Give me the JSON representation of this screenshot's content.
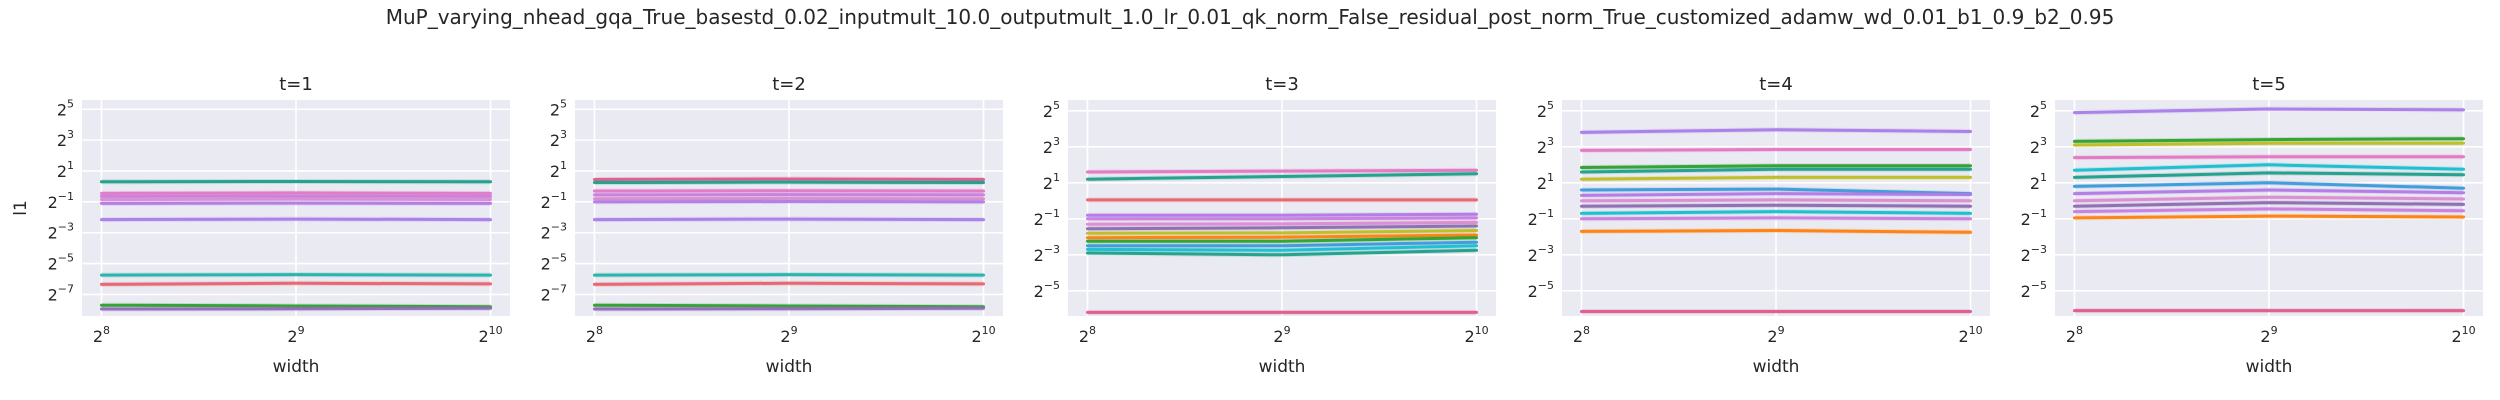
{
  "figure_title": "MuP_varying_nhead_gqa_True_basestd_0.02_inputmult_10.0_outputmult_1.0_lr_0.01_qk_norm_False_residual_post_norm_True_customized_adamw_wd_0.01_b1_0.9_b2_0.95",
  "chart_data": [
    {
      "type": "line",
      "title": "t=1",
      "xlabel": "width",
      "ylabel": "l1",
      "xscale": "log2",
      "yscale": "log2",
      "xlim_log2": [
        7.9,
        10.1
      ],
      "ylim_log2": [
        -8.4,
        5.6
      ],
      "grid": true,
      "x_ticks": [
        {
          "base": "2",
          "exp": "8",
          "v": 8
        },
        {
          "base": "2",
          "exp": "9",
          "v": 9
        },
        {
          "base": "2",
          "exp": "10",
          "v": 10
        }
      ],
      "y_ticks": [
        {
          "base": "2",
          "exp": "5",
          "v": 5
        },
        {
          "base": "2",
          "exp": "3",
          "v": 3
        },
        {
          "base": "2",
          "exp": "1",
          "v": 1
        },
        {
          "base": "2",
          "exp": "−1",
          "v": -1
        },
        {
          "base": "2",
          "exp": "−3",
          "v": -3
        },
        {
          "base": "2",
          "exp": "−5",
          "v": -5
        },
        {
          "base": "2",
          "exp": "−7",
          "v": -7
        }
      ],
      "x": [
        256,
        512,
        1024
      ],
      "series": [
        {
          "color": "#1f9e89",
          "log2_values": [
            0.3,
            0.32,
            0.3
          ]
        },
        {
          "color": "#e377c2",
          "log2_values": [
            -0.45,
            -0.42,
            -0.45
          ]
        },
        {
          "color": "#c77dde",
          "log2_values": [
            -0.65,
            -0.63,
            -0.65
          ]
        },
        {
          "color": "#d98cd0",
          "log2_values": [
            -0.85,
            -0.82,
            -0.85
          ]
        },
        {
          "color": "#b07ae6",
          "log2_values": [
            -1.1,
            -1.08,
            -1.1
          ]
        },
        {
          "color": "#a67de8",
          "log2_values": [
            -2.15,
            -2.12,
            -2.15
          ]
        },
        {
          "color": "#24b3a8",
          "log2_values": [
            -5.75,
            -5.72,
            -5.75
          ]
        },
        {
          "color": "#e8636d",
          "log2_values": [
            -6.35,
            -6.28,
            -6.32
          ]
        },
        {
          "color": "#2ca02c",
          "log2_values": [
            -7.7,
            -7.75,
            -7.8
          ]
        },
        {
          "color": "#9467bd",
          "log2_values": [
            -7.95,
            -7.93,
            -7.9
          ]
        }
      ]
    },
    {
      "type": "line",
      "title": "t=2",
      "xlabel": "width",
      "ylabel": "",
      "xscale": "log2",
      "yscale": "log2",
      "xlim_log2": [
        7.9,
        10.1
      ],
      "ylim_log2": [
        -8.4,
        5.6
      ],
      "grid": true,
      "x_ticks": [
        {
          "base": "2",
          "exp": "8",
          "v": 8
        },
        {
          "base": "2",
          "exp": "9",
          "v": 9
        },
        {
          "base": "2",
          "exp": "10",
          "v": 10
        }
      ],
      "y_ticks": [
        {
          "base": "2",
          "exp": "5",
          "v": 5
        },
        {
          "base": "2",
          "exp": "3",
          "v": 3
        },
        {
          "base": "2",
          "exp": "1",
          "v": 1
        },
        {
          "base": "2",
          "exp": "−1",
          "v": -1
        },
        {
          "base": "2",
          "exp": "−3",
          "v": -3
        },
        {
          "base": "2",
          "exp": "−5",
          "v": -5
        },
        {
          "base": "2",
          "exp": "−7",
          "v": -7
        }
      ],
      "x": [
        256,
        512,
        1024
      ],
      "series": [
        {
          "color": "#e05a8a",
          "log2_values": [
            0.45,
            0.48,
            0.45
          ]
        },
        {
          "color": "#1f9e89",
          "log2_values": [
            0.25,
            0.28,
            0.25
          ]
        },
        {
          "color": "#e377c2",
          "log2_values": [
            -0.3,
            -0.28,
            -0.3
          ]
        },
        {
          "color": "#c77dde",
          "log2_values": [
            -0.55,
            -0.53,
            -0.55
          ]
        },
        {
          "color": "#d98cd0",
          "log2_values": [
            -0.8,
            -0.78,
            -0.8
          ]
        },
        {
          "color": "#b07ae6",
          "log2_values": [
            -1.0,
            -0.98,
            -1.0
          ]
        },
        {
          "color": "#a67de8",
          "log2_values": [
            -2.15,
            -2.12,
            -2.15
          ]
        },
        {
          "color": "#24b3a8",
          "log2_values": [
            -5.75,
            -5.72,
            -5.75
          ]
        },
        {
          "color": "#e8636d",
          "log2_values": [
            -6.35,
            -6.28,
            -6.32
          ]
        },
        {
          "color": "#2ca02c",
          "log2_values": [
            -7.7,
            -7.75,
            -7.8
          ]
        },
        {
          "color": "#9467bd",
          "log2_values": [
            -7.95,
            -7.93,
            -7.9
          ]
        }
      ]
    },
    {
      "type": "line",
      "title": "t=3",
      "xlabel": "width",
      "ylabel": "",
      "xscale": "log2",
      "yscale": "log2",
      "xlim_log2": [
        7.9,
        10.1
      ],
      "ylim_log2": [
        -6.4,
        5.6
      ],
      "grid": true,
      "x_ticks": [
        {
          "base": "2",
          "exp": "8",
          "v": 8
        },
        {
          "base": "2",
          "exp": "9",
          "v": 9
        },
        {
          "base": "2",
          "exp": "10",
          "v": 10
        }
      ],
      "y_ticks": [
        {
          "base": "2",
          "exp": "5",
          "v": 5
        },
        {
          "base": "2",
          "exp": "3",
          "v": 3
        },
        {
          "base": "2",
          "exp": "1",
          "v": 1
        },
        {
          "base": "2",
          "exp": "−1",
          "v": -1
        },
        {
          "base": "2",
          "exp": "−3",
          "v": -3
        },
        {
          "base": "2",
          "exp": "−5",
          "v": -5
        }
      ],
      "x": [
        256,
        512,
        1024
      ],
      "series": [
        {
          "color": "#e377c2",
          "log2_values": [
            1.6,
            1.65,
            1.7
          ]
        },
        {
          "color": "#1f9e89",
          "log2_values": [
            1.2,
            1.35,
            1.5
          ]
        },
        {
          "color": "#e8636d",
          "log2_values": [
            0.05,
            0.05,
            0.05
          ]
        },
        {
          "color": "#b07ae6",
          "log2_values": [
            -0.8,
            -0.8,
            -0.75
          ]
        },
        {
          "color": "#c77dde",
          "log2_values": [
            -1.0,
            -1.0,
            -0.95
          ]
        },
        {
          "color": "#d98cd0",
          "log2_values": [
            -1.3,
            -1.28,
            -1.2
          ]
        },
        {
          "color": "#8c6bb1",
          "log2_values": [
            -1.55,
            -1.5,
            -1.4
          ]
        },
        {
          "color": "#bcbd22",
          "log2_values": [
            -1.8,
            -1.78,
            -1.65
          ]
        },
        {
          "color": "#ff7f0e",
          "log2_values": [
            -2.05,
            -2.02,
            -1.9
          ]
        },
        {
          "color": "#2ca02c",
          "log2_values": [
            -2.25,
            -2.25,
            -2.05
          ]
        },
        {
          "color": "#3b9ad9",
          "log2_values": [
            -2.5,
            -2.5,
            -2.3
          ]
        },
        {
          "color": "#17becf",
          "log2_values": [
            -2.7,
            -2.75,
            -2.5
          ]
        },
        {
          "color": "#1f9e89",
          "log2_values": [
            -2.9,
            -3.0,
            -2.75
          ]
        },
        {
          "color": "#e05a8a",
          "log2_values": [
            -6.2,
            -6.2,
            -6.2
          ]
        }
      ]
    },
    {
      "type": "line",
      "title": "t=4",
      "xlabel": "width",
      "ylabel": "",
      "xscale": "log2",
      "yscale": "log2",
      "xlim_log2": [
        7.9,
        10.1
      ],
      "ylim_log2": [
        -6.4,
        5.6
      ],
      "grid": true,
      "x_ticks": [
        {
          "base": "2",
          "exp": "8",
          "v": 8
        },
        {
          "base": "2",
          "exp": "9",
          "v": 9
        },
        {
          "base": "2",
          "exp": "10",
          "v": 10
        }
      ],
      "y_ticks": [
        {
          "base": "2",
          "exp": "5",
          "v": 5
        },
        {
          "base": "2",
          "exp": "3",
          "v": 3
        },
        {
          "base": "2",
          "exp": "1",
          "v": 1
        },
        {
          "base": "2",
          "exp": "−1",
          "v": -1
        },
        {
          "base": "2",
          "exp": "−3",
          "v": -3
        },
        {
          "base": "2",
          "exp": "−5",
          "v": -5
        }
      ],
      "x": [
        256,
        512,
        1024
      ],
      "series": [
        {
          "color": "#a67de8",
          "log2_values": [
            3.8,
            3.95,
            3.85
          ]
        },
        {
          "color": "#e377c2",
          "log2_values": [
            2.8,
            2.85,
            2.85
          ]
        },
        {
          "color": "#2ca02c",
          "log2_values": [
            1.85,
            1.95,
            1.95
          ]
        },
        {
          "color": "#1f9e89",
          "log2_values": [
            1.6,
            1.75,
            1.75
          ]
        },
        {
          "color": "#bcbd22",
          "log2_values": [
            1.2,
            1.3,
            1.3
          ]
        },
        {
          "color": "#3b9ad9",
          "log2_values": [
            0.6,
            0.65,
            0.4
          ]
        },
        {
          "color": "#b07ae6",
          "log2_values": [
            0.3,
            0.4,
            0.35
          ]
        },
        {
          "color": "#d98cd0",
          "log2_values": [
            0.0,
            0.05,
            0.0
          ]
        },
        {
          "color": "#8c6bb1",
          "log2_values": [
            -0.3,
            -0.25,
            -0.3
          ]
        },
        {
          "color": "#17becf",
          "log2_values": [
            -0.7,
            -0.6,
            -0.7
          ]
        },
        {
          "color": "#c77dde",
          "log2_values": [
            -1.0,
            -0.95,
            -1.0
          ]
        },
        {
          "color": "#ff7f0e",
          "log2_values": [
            -1.7,
            -1.65,
            -1.75
          ]
        },
        {
          "color": "#e05a8a",
          "log2_values": [
            -6.15,
            -6.15,
            -6.15
          ]
        }
      ]
    },
    {
      "type": "line",
      "title": "t=5",
      "xlabel": "width",
      "ylabel": "",
      "xscale": "log2",
      "yscale": "log2",
      "xlim_log2": [
        7.9,
        10.1
      ],
      "ylim_log2": [
        -6.4,
        5.6
      ],
      "grid": true,
      "x_ticks": [
        {
          "base": "2",
          "exp": "8",
          "v": 8
        },
        {
          "base": "2",
          "exp": "9",
          "v": 9
        },
        {
          "base": "2",
          "exp": "10",
          "v": 10
        }
      ],
      "y_ticks": [
        {
          "base": "2",
          "exp": "5",
          "v": 5
        },
        {
          "base": "2",
          "exp": "3",
          "v": 3
        },
        {
          "base": "2",
          "exp": "1",
          "v": 1
        },
        {
          "base": "2",
          "exp": "−1",
          "v": -1
        },
        {
          "base": "2",
          "exp": "−3",
          "v": -3
        },
        {
          "base": "2",
          "exp": "−5",
          "v": -5
        }
      ],
      "x": [
        256,
        512,
        1024
      ],
      "series": [
        {
          "color": "#a67de8",
          "log2_values": [
            4.9,
            5.1,
            5.05
          ]
        },
        {
          "color": "#2ca02c",
          "log2_values": [
            3.3,
            3.4,
            3.45
          ]
        },
        {
          "color": "#bcbd22",
          "log2_values": [
            3.1,
            3.2,
            3.2
          ]
        },
        {
          "color": "#e377c2",
          "log2_values": [
            2.4,
            2.45,
            2.45
          ]
        },
        {
          "color": "#17becf",
          "log2_values": [
            1.7,
            2.0,
            1.75
          ]
        },
        {
          "color": "#1f9e89",
          "log2_values": [
            1.3,
            1.55,
            1.45
          ]
        },
        {
          "color": "#3b9ad9",
          "log2_values": [
            0.8,
            1.0,
            0.7
          ]
        },
        {
          "color": "#b07ae6",
          "log2_values": [
            0.4,
            0.6,
            0.45
          ]
        },
        {
          "color": "#d98cd0",
          "log2_values": [
            0.0,
            0.2,
            0.1
          ]
        },
        {
          "color": "#8c6bb1",
          "log2_values": [
            -0.3,
            -0.1,
            -0.2
          ]
        },
        {
          "color": "#c77dde",
          "log2_values": [
            -0.6,
            -0.45,
            -0.55
          ]
        },
        {
          "color": "#ff7f0e",
          "log2_values": [
            -0.95,
            -0.85,
            -0.9
          ]
        },
        {
          "color": "#e05a8a",
          "log2_values": [
            -6.1,
            -6.1,
            -6.1
          ]
        }
      ]
    }
  ]
}
